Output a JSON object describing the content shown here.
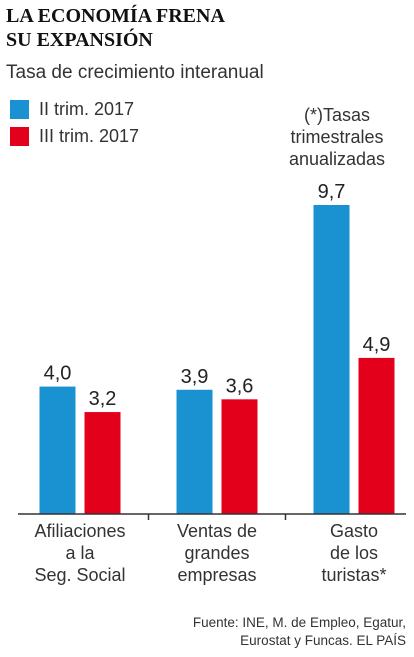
{
  "title_lines": [
    "LA ECONOMÍA FRENA",
    "SU EXPANSIÓN"
  ],
  "subtitle": "Tasa de crecimiento interanual",
  "legend": [
    {
      "label": "II trim. 2017",
      "color": "#1a91d1"
    },
    {
      "label": "III trim. 2017",
      "color": "#e2001a"
    }
  ],
  "note_lines": [
    "(*)Tasas",
    "trimestrales",
    "anualizadas"
  ],
  "source_lines": [
    "Fuente: INE, M. de Empleo, Egatur,",
    "Eurostat y Funcas.       EL PAÍS"
  ],
  "chart_data": {
    "type": "bar",
    "categories": [
      [
        "Afiliaciones",
        "a la",
        "Seg. Social"
      ],
      [
        "Ventas de",
        "grandes",
        "empresas"
      ],
      [
        "Gasto",
        "de los",
        "turistas*"
      ]
    ],
    "series": [
      {
        "name": "II trim. 2017",
        "color": "#1a91d1",
        "values": [
          4.0,
          3.9,
          9.7
        ],
        "labels": [
          "4,0",
          "3,9",
          "9,7"
        ]
      },
      {
        "name": "III trim. 2017",
        "color": "#e2001a",
        "values": [
          3.2,
          3.6,
          4.9
        ],
        "labels": [
          "3,2",
          "3,6",
          "4,9"
        ]
      }
    ],
    "ylim": [
      0,
      9.7
    ],
    "grid": false,
    "legend_position": "top-left"
  }
}
